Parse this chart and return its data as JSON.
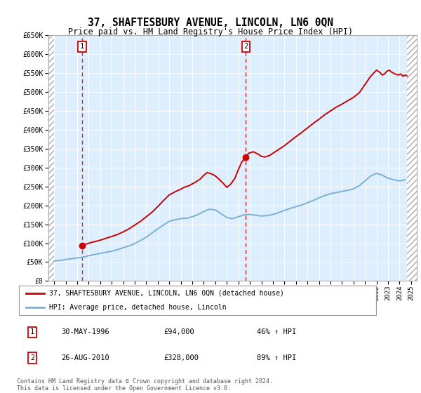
{
  "title": "37, SHAFTESBURY AVENUE, LINCOLN, LN6 0QN",
  "subtitle": "Price paid vs. HM Land Registry's House Price Index (HPI)",
  "title_fontsize": 10.5,
  "subtitle_fontsize": 8.5,
  "ylim": [
    0,
    650000
  ],
  "yticks": [
    0,
    50000,
    100000,
    150000,
    200000,
    250000,
    300000,
    350000,
    400000,
    450000,
    500000,
    550000,
    600000,
    650000
  ],
  "ytick_labels": [
    "£0",
    "£50K",
    "£100K",
    "£150K",
    "£200K",
    "£250K",
    "£300K",
    "£350K",
    "£400K",
    "£450K",
    "£500K",
    "£550K",
    "£600K",
    "£650K"
  ],
  "xmin": 1993.5,
  "xmax": 2025.5,
  "hatch_start": 1994.0,
  "hatch_end": 2024.65,
  "sale1_x": 1996.42,
  "sale1_y": 94000,
  "sale2_x": 2010.65,
  "sale2_y": 328000,
  "sale1_label": "1",
  "sale2_label": "2",
  "property_color": "#cc0000",
  "hpi_color": "#7ab0d4",
  "bg_color": "#ddeeff",
  "hatch_color": "#aaaaaa",
  "grid_color": "#ffffff",
  "legend_label_property": "37, SHAFTESBURY AVENUE, LINCOLN, LN6 0QN (detached house)",
  "legend_label_hpi": "HPI: Average price, detached house, Lincoln",
  "table_row1": [
    "1",
    "30-MAY-1996",
    "£94,000",
    "46% ↑ HPI"
  ],
  "table_row2": [
    "2",
    "26-AUG-2010",
    "£328,000",
    "89% ↑ HPI"
  ],
  "footer": "Contains HM Land Registry data © Crown copyright and database right 2024.\nThis data is licensed under the Open Government Licence v3.0.",
  "hpi_data_x": [
    1994.0,
    1994.5,
    1995.0,
    1995.5,
    1996.0,
    1996.5,
    1997.0,
    1997.5,
    1998.0,
    1998.5,
    1999.0,
    1999.5,
    2000.0,
    2000.5,
    2001.0,
    2001.5,
    2002.0,
    2002.5,
    2003.0,
    2003.5,
    2004.0,
    2004.5,
    2005.0,
    2005.5,
    2006.0,
    2006.5,
    2007.0,
    2007.5,
    2008.0,
    2008.5,
    2009.0,
    2009.5,
    2010.0,
    2010.5,
    2011.0,
    2011.5,
    2012.0,
    2012.5,
    2013.0,
    2013.5,
    2014.0,
    2014.5,
    2015.0,
    2015.5,
    2016.0,
    2016.5,
    2017.0,
    2017.5,
    2018.0,
    2018.5,
    2019.0,
    2019.5,
    2020.0,
    2020.5,
    2021.0,
    2021.5,
    2022.0,
    2022.5,
    2023.0,
    2023.5,
    2024.0,
    2024.5
  ],
  "hpi_data_y": [
    53000,
    54000,
    57000,
    59000,
    61000,
    63000,
    67000,
    70000,
    73000,
    76000,
    79000,
    83000,
    88000,
    93000,
    99000,
    107000,
    116000,
    127000,
    138000,
    148000,
    158000,
    162000,
    165000,
    166000,
    170000,
    176000,
    184000,
    190000,
    188000,
    178000,
    168000,
    165000,
    170000,
    175000,
    176000,
    174000,
    172000,
    173000,
    176000,
    181000,
    187000,
    192000,
    197000,
    201000,
    207000,
    213000,
    220000,
    226000,
    231000,
    234000,
    237000,
    240000,
    244000,
    252000,
    265000,
    278000,
    285000,
    280000,
    272000,
    268000,
    265000,
    268000
  ],
  "prop_data_x": [
    1996.42,
    1997.0,
    1997.5,
    1998.0,
    1998.5,
    1999.0,
    1999.5,
    2000.0,
    2000.5,
    2001.0,
    2001.5,
    2002.0,
    2002.5,
    2003.0,
    2003.5,
    2004.0,
    2004.5,
    2005.0,
    2005.3,
    2005.7,
    2006.0,
    2006.3,
    2006.7,
    2007.0,
    2007.3,
    2007.7,
    2008.0,
    2008.3,
    2008.7,
    2009.0,
    2009.3,
    2009.7,
    2010.0,
    2010.3,
    2010.65,
    2010.9,
    2011.3,
    2011.7,
    2012.0,
    2012.3,
    2012.7,
    2013.0,
    2013.5,
    2014.0,
    2014.5,
    2015.0,
    2015.5,
    2016.0,
    2016.5,
    2017.0,
    2017.5,
    2018.0,
    2018.5,
    2019.0,
    2019.5,
    2020.0,
    2020.5,
    2021.0,
    2021.5,
    2022.0,
    2022.3,
    2022.5,
    2022.7,
    2022.9,
    2023.1,
    2023.3,
    2023.6,
    2023.9,
    2024.1,
    2024.3,
    2024.5,
    2024.65
  ],
  "prop_data_y": [
    94000,
    100000,
    104000,
    108000,
    113000,
    118000,
    123000,
    130000,
    138000,
    148000,
    158000,
    170000,
    182000,
    197000,
    213000,
    228000,
    236000,
    243000,
    248000,
    252000,
    257000,
    262000,
    270000,
    280000,
    287000,
    283000,
    278000,
    270000,
    258000,
    248000,
    255000,
    272000,
    295000,
    315000,
    328000,
    338000,
    342000,
    336000,
    330000,
    328000,
    332000,
    338000,
    348000,
    358000,
    370000,
    382000,
    393000,
    405000,
    417000,
    428000,
    440000,
    450000,
    460000,
    468000,
    477000,
    486000,
    498000,
    520000,
    542000,
    558000,
    552000,
    545000,
    548000,
    555000,
    558000,
    553000,
    548000,
    545000,
    548000,
    542000,
    545000,
    543000
  ]
}
